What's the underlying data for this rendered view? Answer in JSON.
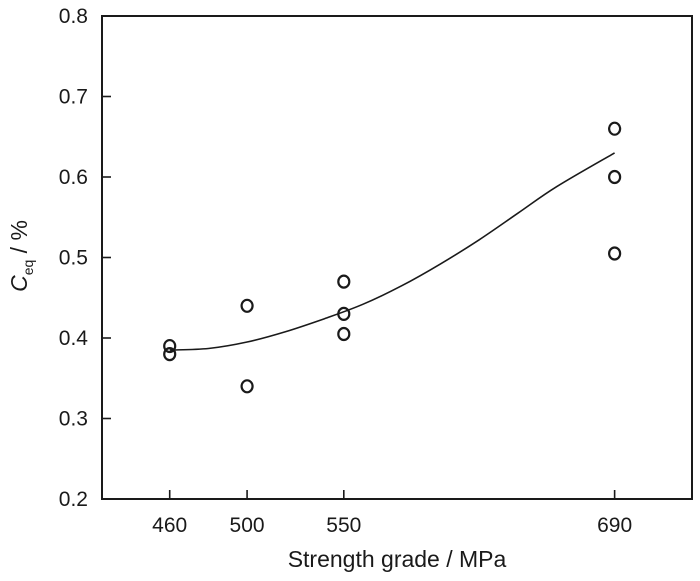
{
  "chart_data": {
    "type": "scatter",
    "xlabel": "Strength grade / MPa",
    "ylabel": "C",
    "ylabel_sub": "eq",
    "ylabel_unit": " / %",
    "xlim": [
      425,
      730
    ],
    "ylim": [
      0.2,
      0.8
    ],
    "xticks": [
      460,
      500,
      550,
      690
    ],
    "yticks": [
      0.2,
      0.3,
      0.4,
      0.5,
      0.6,
      0.7,
      0.8
    ],
    "grid": false,
    "legend": "none",
    "series": [
      {
        "marker": "open-circle",
        "points": [
          [
            460,
            0.39
          ],
          [
            460,
            0.38
          ],
          [
            500,
            0.44
          ],
          [
            500,
            0.34
          ],
          [
            550,
            0.47
          ],
          [
            550,
            0.43
          ],
          [
            550,
            0.405
          ],
          [
            690,
            0.66
          ],
          [
            690,
            0.6
          ],
          [
            690,
            0.505
          ]
        ]
      }
    ],
    "trend_line": {
      "points": [
        [
          460,
          0.385
        ],
        [
          480,
          0.387
        ],
        [
          500,
          0.395
        ],
        [
          520,
          0.408
        ],
        [
          540,
          0.424
        ],
        [
          560,
          0.442
        ],
        [
          580,
          0.465
        ],
        [
          600,
          0.492
        ],
        [
          620,
          0.522
        ],
        [
          640,
          0.555
        ],
        [
          660,
          0.588
        ],
        [
          690,
          0.63
        ]
      ]
    },
    "colors": {
      "ink": "#1a1a1a",
      "background": "#ffffff"
    }
  }
}
